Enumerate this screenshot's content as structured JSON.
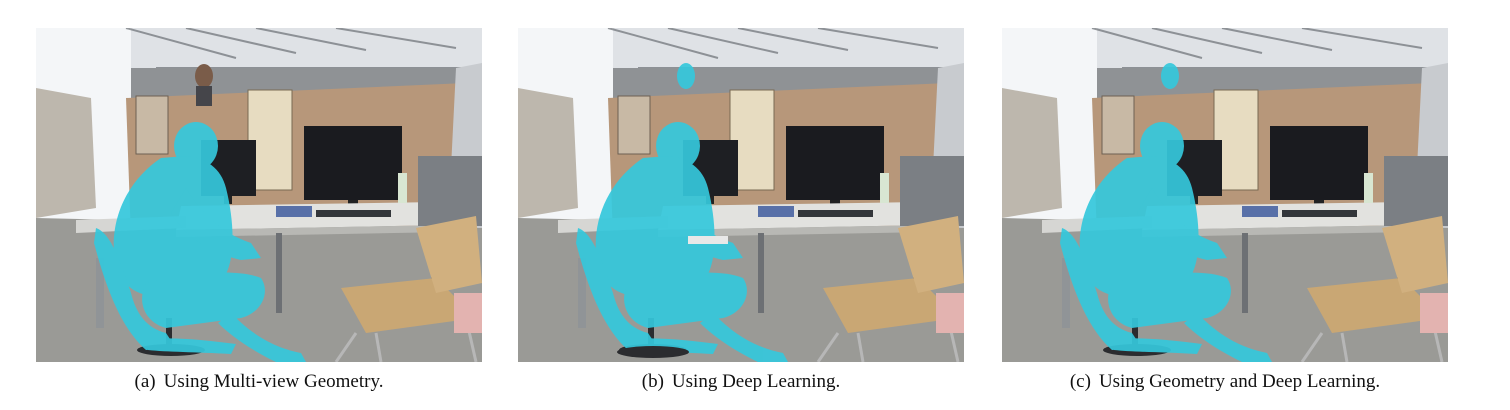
{
  "figure": {
    "panels": [
      {
        "label": "(a)",
        "caption": "Using Multi-view Geometry."
      },
      {
        "label": "(b)",
        "caption": "Using Deep Learning."
      },
      {
        "label": "(c)",
        "caption": "Using Geometry and Deep Learning."
      }
    ]
  },
  "colors": {
    "segmentation_overlay": "#35c8dc",
    "desk_partition": "#b7977a",
    "floor": "#9a9a96",
    "ceiling": "#dfe2e6"
  }
}
